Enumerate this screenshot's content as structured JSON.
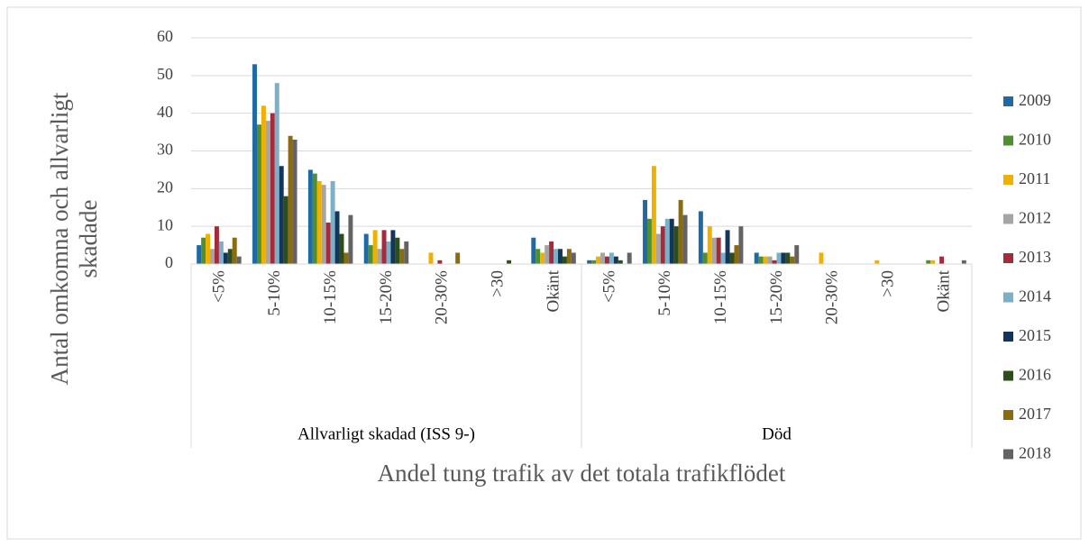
{
  "chart_data": {
    "type": "bar",
    "y_label": "Antal omkomna och allvarligt skadade",
    "x_label": "Andel tung trafik av det totala trafikflödet",
    "groups": [
      {
        "name": "Allvarligt skadad (ISS 9-)",
        "categories": [
          "<5%",
          "5-10%",
          "10-15%",
          "15-20%",
          "20-30%",
          ">30",
          "Okänt"
        ]
      },
      {
        "name": "Död",
        "categories": [
          "<5%",
          "5-10%",
          "10-15%",
          "15-20%",
          "20-30%",
          ">30",
          "Okänt"
        ]
      }
    ],
    "series": [
      {
        "name": "2009",
        "color": "#1f6aa5",
        "values": [
          5,
          53,
          25,
          8,
          0,
          0,
          7,
          1,
          17,
          14,
          3,
          0,
          0,
          0
        ]
      },
      {
        "name": "2010",
        "color": "#4e8f2f",
        "values": [
          7,
          37,
          24,
          5,
          0,
          0,
          4,
          1,
          12,
          3,
          2,
          0,
          0,
          1
        ]
      },
      {
        "name": "2011",
        "color": "#f0b000",
        "values": [
          8,
          42,
          22,
          9,
          3,
          0,
          3,
          2,
          26,
          10,
          2,
          3,
          1,
          1
        ]
      },
      {
        "name": "2012",
        "color": "#a5a5a5",
        "values": [
          4,
          38,
          21,
          4,
          0,
          0,
          5,
          3,
          8,
          7,
          2,
          0,
          0,
          0
        ]
      },
      {
        "name": "2013",
        "color": "#a52a3a",
        "values": [
          10,
          40,
          11,
          9,
          1,
          0,
          6,
          2,
          10,
          7,
          1,
          0,
          0,
          2
        ]
      },
      {
        "name": "2014",
        "color": "#7ab1c9",
        "values": [
          6,
          48,
          22,
          6,
          0,
          0,
          4,
          3,
          12,
          3,
          3,
          0,
          0,
          0
        ]
      },
      {
        "name": "2015",
        "color": "#14355a",
        "values": [
          3,
          26,
          14,
          9,
          0,
          0,
          4,
          2,
          12,
          9,
          3,
          0,
          0,
          0
        ]
      },
      {
        "name": "2016",
        "color": "#2c4f1a",
        "values": [
          4,
          18,
          8,
          7,
          0,
          1,
          2,
          1,
          10,
          3,
          3,
          0,
          0,
          0
        ]
      },
      {
        "name": "2017",
        "color": "#8c6a10",
        "values": [
          7,
          34,
          3,
          4,
          3,
          0,
          4,
          0,
          17,
          5,
          2,
          0,
          0,
          0
        ]
      },
      {
        "name": "2018",
        "color": "#636363",
        "values": [
          2,
          33,
          13,
          6,
          0,
          0,
          3,
          3,
          13,
          10,
          5,
          0,
          0,
          1
        ]
      }
    ],
    "ylim": [
      0,
      60
    ],
    "yticks": [
      0,
      10,
      20,
      30,
      40,
      50,
      60
    ],
    "grid": true,
    "legend": "right"
  }
}
